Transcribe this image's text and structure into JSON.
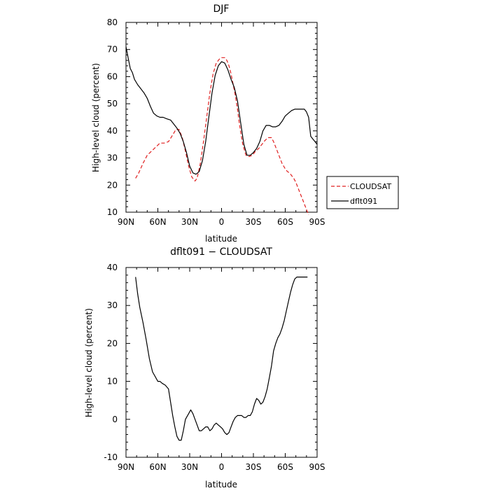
{
  "chart_data": [
    {
      "type": "line",
      "title": "DJF",
      "xlabel": "latitude",
      "ylabel": "High-level cloud (percent)",
      "xlim": [
        -90,
        90
      ],
      "ylim": [
        10,
        80
      ],
      "xticks": [
        -90,
        -60,
        -30,
        0,
        30,
        60,
        90
      ],
      "xtick_labels": [
        "90N",
        "60N",
        "30N",
        "0",
        "30S",
        "60S",
        "90S"
      ],
      "yticks": [
        10,
        20,
        30,
        40,
        50,
        60,
        70,
        80
      ],
      "legend": {
        "placement": "right"
      },
      "series": [
        {
          "name": "CLOUDSAT",
          "color": "#e02020",
          "dash": "dashed",
          "x": [
            -81,
            -78,
            -74,
            -70,
            -66,
            -62,
            -58,
            -54,
            -50,
            -46,
            -43,
            -40,
            -37,
            -34,
            -31,
            -28,
            -25,
            -23,
            -20,
            -17,
            -14,
            -11,
            -8,
            -5,
            -2,
            0,
            3,
            5,
            7,
            9,
            11,
            13,
            15,
            17,
            20,
            23,
            26,
            29,
            32,
            35,
            38,
            41,
            44,
            47,
            49,
            51,
            54,
            57,
            60,
            62,
            64,
            66,
            68,
            70,
            72,
            74,
            76,
            78,
            80,
            82
          ],
          "y": [
            22.5,
            24.5,
            28,
            31,
            32.5,
            34,
            35.5,
            35.5,
            36,
            38.5,
            40.5,
            40.5,
            37.5,
            32.5,
            27,
            23,
            21.5,
            22.5,
            28,
            36,
            45,
            54,
            61,
            65,
            66.5,
            67,
            67,
            66,
            64,
            61,
            57,
            53,
            48,
            42,
            35,
            31,
            30.5,
            31,
            32.5,
            33.5,
            35,
            36.5,
            37.5,
            37.5,
            36,
            34,
            31,
            28,
            26,
            25,
            24.5,
            23.5,
            22.5,
            21,
            19,
            17,
            15,
            13,
            11,
            9
          ]
        },
        {
          "name": "dflt091",
          "color": "#000000",
          "dash": "solid",
          "x": [
            -90,
            -88,
            -86,
            -84,
            -82,
            -79,
            -76,
            -73,
            -70,
            -67,
            -64,
            -61,
            -58,
            -55,
            -52,
            -48,
            -45,
            -42,
            -39,
            -36,
            -33,
            -30,
            -27,
            -24,
            -21,
            -18,
            -15,
            -12,
            -9,
            -6,
            -3,
            0,
            3,
            6,
            9,
            12,
            15,
            18,
            21,
            24,
            27,
            30,
            33,
            36,
            39,
            42,
            45,
            48,
            51,
            54,
            57,
            60,
            63,
            66,
            69,
            72,
            75,
            78,
            80,
            82,
            84,
            86,
            88,
            90
          ],
          "y": [
            71,
            67,
            63,
            61.5,
            59,
            57,
            55.5,
            54,
            52,
            49,
            46.5,
            45.5,
            45,
            45,
            44.5,
            44,
            42.5,
            41,
            39,
            36,
            32,
            27,
            24.5,
            24,
            25,
            29,
            36,
            45,
            54,
            60.5,
            64,
            65.5,
            65,
            62.5,
            59,
            56,
            51,
            43,
            35,
            31,
            31,
            32,
            33.5,
            36,
            40,
            42,
            42,
            41.5,
            41.5,
            42,
            43.5,
            45.5,
            46.5,
            47.5,
            48,
            48,
            48,
            48,
            47,
            45,
            38,
            37,
            36,
            35
          ]
        }
      ]
    },
    {
      "type": "line",
      "title": "dflt091 − CLOUDSAT",
      "xlabel": "latitude",
      "ylabel": "High-level cloud (percent)",
      "xlim": [
        -90,
        90
      ],
      "ylim": [
        -10,
        40
      ],
      "xticks": [
        -90,
        -60,
        -30,
        0,
        30,
        60,
        90
      ],
      "xtick_labels": [
        "90N",
        "60N",
        "30N",
        "0",
        "30S",
        "60S",
        "90S"
      ],
      "yticks": [
        -10,
        0,
        10,
        20,
        30,
        40
      ],
      "series": [
        {
          "color": "#000000",
          "dash": "solid",
          "x": [
            -81,
            -79,
            -77,
            -74,
            -71,
            -68,
            -65,
            -62,
            -60,
            -58,
            -56,
            -53,
            -50,
            -48,
            -46,
            -44,
            -42,
            -40,
            -38,
            -36,
            -34,
            -31,
            -29,
            -27,
            -25,
            -23,
            -21,
            -19,
            -17,
            -15,
            -13,
            -11,
            -9,
            -7,
            -5,
            -3,
            -1,
            1,
            3,
            5,
            7,
            9,
            11,
            13,
            15,
            17,
            19,
            21,
            23,
            25,
            27,
            29,
            31,
            33,
            35,
            37,
            39,
            41,
            43,
            45,
            47,
            49,
            51,
            53,
            55,
            57,
            59,
            61,
            63,
            65,
            67,
            69,
            71,
            73,
            75,
            77,
            79,
            81
          ],
          "y": [
            37.5,
            33,
            29.5,
            25.5,
            21,
            16,
            12.5,
            11,
            10,
            10,
            9.5,
            9,
            8,
            4.5,
            1,
            -2,
            -4.5,
            -5.5,
            -5.5,
            -3,
            0,
            1.5,
            2.5,
            1.5,
            0,
            -1.5,
            -3,
            -3,
            -2.5,
            -2,
            -2,
            -3,
            -2.5,
            -1.5,
            -1,
            -1.5,
            -2,
            -2.5,
            -3.5,
            -4,
            -3.5,
            -2,
            -0.5,
            0.5,
            1,
            1,
            1,
            0.5,
            0.5,
            1,
            1,
            2,
            4,
            5.5,
            5,
            4,
            4.5,
            6,
            8,
            11,
            14,
            18,
            20,
            21.5,
            22.5,
            24,
            26,
            28.5,
            31,
            33.5,
            35.5,
            37,
            37.5,
            37.5,
            37.5,
            37.5,
            37.5,
            37.5
          ]
        }
      ]
    }
  ]
}
